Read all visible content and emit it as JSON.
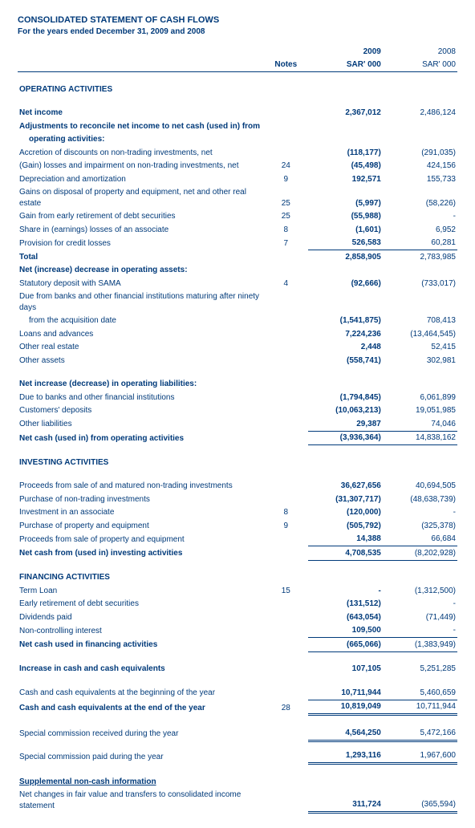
{
  "page": {
    "title": "CONSOLIDATED STATEMENT OF CASH FLOWS",
    "subtitle": "For the years ended December 31, 2009 and 2008",
    "col_notes": "Notes",
    "col_2009_year": "2009",
    "col_2009_unit": "SAR' 000",
    "col_2008_year": "2008",
    "col_2008_unit": "SAR' 000"
  },
  "sec": {
    "operating": "OPERATING ACTIVITIES",
    "investing": "INVESTING ACTIVITIES",
    "financing": "FINANCING ACTIVITIES",
    "net_income": "Net income",
    "adjustments1": "Adjustments to reconcile net income to net cash (used in) from",
    "adjustments2": "operating activities:",
    "op_assets": "Net (increase) decrease in operating assets:",
    "op_liab": "Net increase (decrease) in operating liabilities:",
    "supplemental": "Supplemental non-cash information"
  },
  "rows": {
    "net_income": {
      "y2009": "2,367,012",
      "y2008": "2,486,124"
    },
    "accretion": {
      "label": "Accretion of discounts on non-trading investments, net",
      "y2009": "(118,177)",
      "y2008": "(291,035)"
    },
    "gain_loss_impair": {
      "label": "(Gain) losses and impairment on non-trading investments, net",
      "note": "24",
      "y2009": "(45,498)",
      "y2008": "424,156"
    },
    "dep_amort": {
      "label": "Depreciation and amortization",
      "note": "9",
      "y2009": "192,571",
      "y2008": "155,733"
    },
    "gains_disposal": {
      "label": "Gains on disposal of property and equipment,  net and other real estate",
      "note": "25",
      "y2009": "(5,997)",
      "y2008": "(58,226)"
    },
    "gain_early_retire": {
      "label": "Gain from early retirement of debt securities",
      "note": "25",
      "y2009": "(55,988)",
      "y2008": "-"
    },
    "share_assoc": {
      "label": "Share in (earnings) losses of an associate",
      "note": "8",
      "y2009": "(1,601)",
      "y2008": "6,952"
    },
    "prov_credit": {
      "label": "Provision for credit losses",
      "note": "7",
      "y2009": "526,583",
      "y2008": "60,281"
    },
    "total_adj": {
      "label": "Total",
      "y2009": "2,858,905",
      "y2008": "2,783,985"
    },
    "statutory_sama": {
      "label": "Statutory deposit with SAMA",
      "note": "4",
      "y2009": "(92,666)",
      "y2008": "(733,017)"
    },
    "due_from_banks1": {
      "label": "Due from banks and other financial institutions maturing after ninety days"
    },
    "due_from_banks2": {
      "label": "from the acquisition date",
      "y2009": "(1,541,875)",
      "y2008": "708,413"
    },
    "loans_adv": {
      "label": "Loans and advances",
      "y2009": "7,224,236",
      "y2008": "(13,464,545)"
    },
    "other_re": {
      "label": "Other real estate",
      "y2009": "2,448",
      "y2008": "52,415"
    },
    "other_assets": {
      "label": "Other assets",
      "y2009": "(558,741)",
      "y2008": "302,981"
    },
    "due_to_banks": {
      "label": "Due to banks and other financial institutions",
      "y2009": "(1,794,845)",
      "y2008": "6,061,899"
    },
    "cust_deposits": {
      "label": "Customers' deposits",
      "y2009": "(10,063,213)",
      "y2008": "19,051,985"
    },
    "other_liab": {
      "label": "Other liabilities",
      "y2009": "29,387",
      "y2008": "74,046"
    },
    "net_cash_op": {
      "label": "Net cash (used in) from operating activities",
      "y2009": "(3,936,364)",
      "y2008": "14,838,162"
    },
    "proceeds_nti": {
      "label": "Proceeds from sale of and matured non-trading investments",
      "y2009": "36,627,656",
      "y2008": "40,694,505"
    },
    "purchase_nti": {
      "label": "Purchase of non-trading investments",
      "y2009": "(31,307,717)",
      "y2008": "(48,638,739)"
    },
    "inv_assoc": {
      "label": "Investment in an associate",
      "note": "8",
      "y2009": "(120,000)",
      "y2008": "-"
    },
    "purchase_pe": {
      "label": "Purchase of property and equipment",
      "note": "9",
      "y2009": "(505,792)",
      "y2008": "(325,378)"
    },
    "proceeds_pe": {
      "label": "Proceeds from sale of property and equipment",
      "y2009": "14,388",
      "y2008": "66,684"
    },
    "net_cash_inv": {
      "label": "Net cash from (used in) investing activities",
      "y2009": "4,708,535",
      "y2008": "(8,202,928)"
    },
    "term_loan": {
      "label": "Term Loan",
      "note": "15",
      "y2009": "-",
      "y2008": "(1,312,500)"
    },
    "early_retire": {
      "label": "Early retirement of debt securities",
      "y2009": "(131,512)",
      "y2008": "-"
    },
    "dividends": {
      "label": "Dividends paid",
      "y2009": "(643,054)",
      "y2008": "(71,449)"
    },
    "nci": {
      "label": "Non-controlling interest",
      "y2009": "109,500",
      "y2008": "-"
    },
    "net_cash_fin": {
      "label": "Net cash used in financing activities",
      "y2009": "(665,066)",
      "y2008": "(1,383,949)"
    },
    "increase_cce": {
      "label": "Increase in cash and cash equivalents",
      "y2009": "107,105",
      "y2008": "5,251,285"
    },
    "cce_begin": {
      "label": "Cash and cash equivalents at the beginning of the year",
      "y2009": "10,711,944",
      "y2008": "5,460,659"
    },
    "cce_end": {
      "label": "Cash and cash equivalents at the end of the year",
      "note": "28",
      "y2009": "10,819,049",
      "y2008": "10,711,944"
    },
    "sc_received": {
      "label": "Special commission received during the year",
      "y2009": "4,564,250",
      "y2008": "5,472,166"
    },
    "sc_paid": {
      "label": "Special commission paid during the year",
      "y2009": "1,293,116",
      "y2008": "1,967,600"
    },
    "net_changes_fv": {
      "label": "Net changes in fair value and transfers to consolidated income statement",
      "y2009": "311,724",
      "y2008": "(365,594)"
    }
  }
}
